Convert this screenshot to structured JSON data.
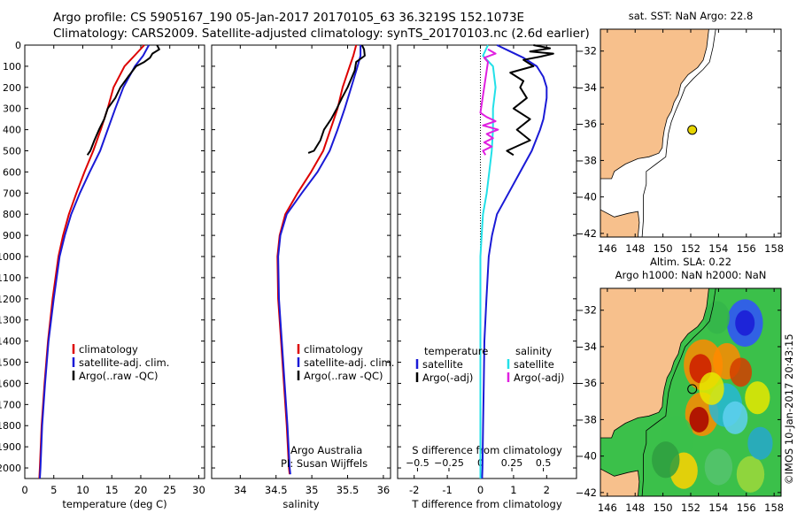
{
  "header": {
    "line1": "Argo profile: CS 5905167_190 05-Jan-2017 20170105_63 36.3219S 152.1073E",
    "line2": "Climatology: CARS2009. Satellite-adjusted climatology: synTS_20170103.nc (2.6d earlier)"
  },
  "side_credit": "©IMOS 10-Jan-2017 20:43:15",
  "colors": {
    "red": "#dd0000",
    "blue": "#1a1ad6",
    "black": "#000000",
    "cyan": "#22e0e8",
    "magenta": "#e020e0",
    "land": "#f7c08c",
    "ocean": "#ffffff"
  },
  "chart_data": [
    {
      "type": "line",
      "xlabel": "temperature (deg C)",
      "ylabel": "",
      "xlim": [
        0,
        31
      ],
      "ylim": [
        2050,
        0
      ],
      "xticks": [
        0,
        5,
        10,
        15,
        20,
        25,
        30
      ],
      "yticks": [
        0,
        100,
        200,
        300,
        400,
        500,
        600,
        700,
        800,
        900,
        1000,
        1100,
        1200,
        1300,
        1400,
        1500,
        1600,
        1700,
        1800,
        1900,
        2000
      ],
      "series": [
        {
          "name": "climatology",
          "color": "#dd0000",
          "depth": [
            0,
            50,
            100,
            200,
            300,
            400,
            500,
            600,
            700,
            800,
            900,
            1000,
            1200,
            1400,
            1600,
            1800,
            2000,
            2050
          ],
          "values": [
            20.6,
            18.9,
            17.2,
            15.3,
            14.3,
            13.1,
            11.8,
            10.3,
            8.9,
            7.6,
            6.6,
            5.8,
            4.8,
            4.0,
            3.4,
            2.9,
            2.6,
            2.5
          ]
        },
        {
          "name": "satellite-adj. clim.",
          "color": "#1a1ad6",
          "depth": [
            0,
            50,
            100,
            200,
            300,
            400,
            500,
            600,
            700,
            800,
            900,
            1000,
            1200,
            1400,
            1600,
            1800,
            2000,
            2050
          ],
          "values": [
            21.4,
            20.4,
            19.0,
            17.0,
            15.6,
            14.3,
            13.0,
            11.2,
            9.5,
            8.0,
            6.9,
            6.0,
            5.0,
            4.1,
            3.5,
            3.0,
            2.7,
            2.6
          ]
        },
        {
          "name": "Argo(..raw -QC)",
          "color": "#000000",
          "depth": [
            0,
            20,
            40,
            60,
            80,
            100,
            150,
            200,
            250,
            300,
            350,
            400,
            450,
            500,
            520
          ],
          "values": [
            22.8,
            23.2,
            22.0,
            21.6,
            20.6,
            19.2,
            17.8,
            16.5,
            15.6,
            14.3,
            13.7,
            12.8,
            12.0,
            11.3,
            10.8
          ]
        }
      ],
      "legend": [
        "climatology",
        "satellite-adj. clim.",
        "Argo(..raw -QC)"
      ]
    },
    {
      "type": "line",
      "xlabel": "salinity",
      "xlim": [
        33.6,
        36.1
      ],
      "ylim": [
        2050,
        0
      ],
      "xticks": [
        34,
        34.5,
        35,
        35.5,
        36
      ],
      "xticklabels": [
        "34",
        "34.5",
        "35",
        "35.5",
        "36"
      ],
      "series": [
        {
          "name": "climatology",
          "color": "#dd0000",
          "depth": [
            0,
            50,
            100,
            200,
            300,
            400,
            500,
            600,
            700,
            800,
            900,
            1000,
            1200,
            1400,
            1600,
            1800,
            2000,
            2030
          ],
          "values": [
            35.62,
            35.58,
            35.53,
            35.43,
            35.36,
            35.26,
            35.16,
            34.99,
            34.8,
            34.63,
            34.55,
            34.52,
            34.53,
            34.57,
            34.61,
            34.65,
            34.68,
            34.69
          ]
        },
        {
          "name": "satellite-adj. clim.",
          "color": "#1a1ad6",
          "depth": [
            0,
            50,
            100,
            200,
            300,
            400,
            500,
            600,
            700,
            800,
            900,
            1000,
            1200,
            1400,
            1600,
            1800,
            2000,
            2030
          ],
          "values": [
            35.68,
            35.68,
            35.64,
            35.55,
            35.46,
            35.36,
            35.25,
            35.08,
            34.86,
            34.65,
            34.56,
            34.53,
            34.54,
            34.58,
            34.62,
            34.66,
            34.69,
            34.7
          ]
        },
        {
          "name": "Argo(..raw -QC)",
          "color": "#000000",
          "depth": [
            0,
            20,
            50,
            80,
            120,
            160,
            200,
            250,
            300,
            350,
            400,
            450,
            500,
            510
          ],
          "values": [
            35.7,
            35.73,
            35.74,
            35.62,
            35.6,
            35.55,
            35.5,
            35.42,
            35.35,
            35.27,
            35.17,
            35.12,
            35.03,
            34.95
          ]
        }
      ],
      "legend": [
        "climatology",
        "satellite-adj. clim.",
        "Argo(..raw -QC)"
      ],
      "annotation": [
        "Argo Australia",
        "PI: Susan Wijffels"
      ]
    },
    {
      "type": "line",
      "xlabel": "T difference from climatology",
      "xlim": [
        -2.5,
        2.9
      ],
      "ylim": [
        2050,
        0
      ],
      "xticks": [
        -2,
        -1,
        0,
        1,
        2
      ],
      "secondary_axis": {
        "label": "S difference from climatology",
        "ticks": [
          -0.5,
          -0.25,
          0,
          0.25,
          0.5
        ],
        "ticklabels": [
          "−0.5",
          "−0.25",
          "0",
          "0.25",
          "0.5"
        ]
      },
      "series": [
        {
          "name": "temperature satellite",
          "color": "#1a1ad6",
          "depth": [
            0,
            30,
            60,
            100,
            150,
            200,
            250,
            300,
            350,
            400,
            500,
            600,
            700,
            800,
            900,
            1000,
            1200,
            1400,
            1600,
            1800,
            2000,
            2050
          ],
          "values": [
            0.5,
            0.9,
            1.3,
            1.7,
            1.9,
            2.0,
            2.0,
            1.95,
            1.9,
            1.8,
            1.55,
            1.2,
            0.85,
            0.5,
            0.35,
            0.25,
            0.18,
            0.12,
            0.1,
            0.08,
            0.06,
            0.05
          ]
        },
        {
          "name": "temperature Argo(-adj)",
          "color": "#000000",
          "depth": [
            0,
            15,
            30,
            40,
            55,
            70,
            100,
            130,
            170,
            200,
            250,
            300,
            350,
            400,
            450,
            500,
            520
          ],
          "values": [
            1.6,
            2.1,
            1.5,
            2.2,
            1.8,
            1.3,
            1.6,
            0.9,
            1.3,
            1.2,
            1.4,
            1.0,
            1.5,
            1.1,
            1.5,
            0.8,
            1.0
          ]
        },
        {
          "name": "salinity satellite",
          "color": "#22e0e8",
          "depth": [
            0,
            50,
            100,
            200,
            300,
            400,
            500,
            600,
            700,
            800,
            900,
            1000,
            1200,
            1400,
            1600,
            1800,
            2000,
            2050
          ],
          "values": [
            0.06,
            0.02,
            0.1,
            0.12,
            0.1,
            0.1,
            0.09,
            0.07,
            0.05,
            0.02,
            0.01,
            0.0,
            0.0,
            0.0,
            0.0,
            0.0,
            0.0,
            0.0
          ]
        },
        {
          "name": "salinity Argo(-adj)",
          "color": "#e020e0",
          "depth": [
            20,
            40,
            60,
            80,
            320,
            340,
            360,
            380,
            400,
            420,
            440,
            460,
            480,
            500,
            520
          ],
          "values": [
            0.06,
            0.12,
            0.03,
            0.06,
            0.0,
            0.05,
            0.12,
            0.02,
            0.14,
            0.05,
            0.1,
            0.03,
            0.09,
            0.02,
            0.04
          ]
        }
      ],
      "legend_headers": [
        "temperature",
        "salinity"
      ],
      "legend": [
        "satellite",
        "Argo(-adj)",
        "satellite",
        "Argo(-adj)"
      ]
    },
    {
      "type": "map",
      "title": "sat. SST: NaN Argo: 22.8",
      "xlim": [
        145.5,
        158.5
      ],
      "ylim": [
        -42.2,
        -30.8
      ],
      "xticks": [
        146,
        148,
        150,
        152,
        154,
        156,
        158
      ],
      "yticks": [
        -32,
        -34,
        -36,
        -38,
        -40,
        -42
      ],
      "profile_position": {
        "lon": 152.1073,
        "lat": -36.3219
      }
    },
    {
      "type": "heatmap",
      "title_lines": [
        "Altim. SLA: 0.22",
        "Argo h1000: NaN h2000: NaN"
      ],
      "xlim": [
        145.5,
        158.5
      ],
      "ylim": [
        -42.2,
        -30.8
      ],
      "xticks": [
        146,
        148,
        150,
        152,
        154,
        156,
        158
      ],
      "yticks": [
        -32,
        -34,
        -36,
        -38,
        -40,
        -42
      ],
      "profile_position": {
        "lon": 152.1073,
        "lat": -36.3219
      }
    }
  ]
}
